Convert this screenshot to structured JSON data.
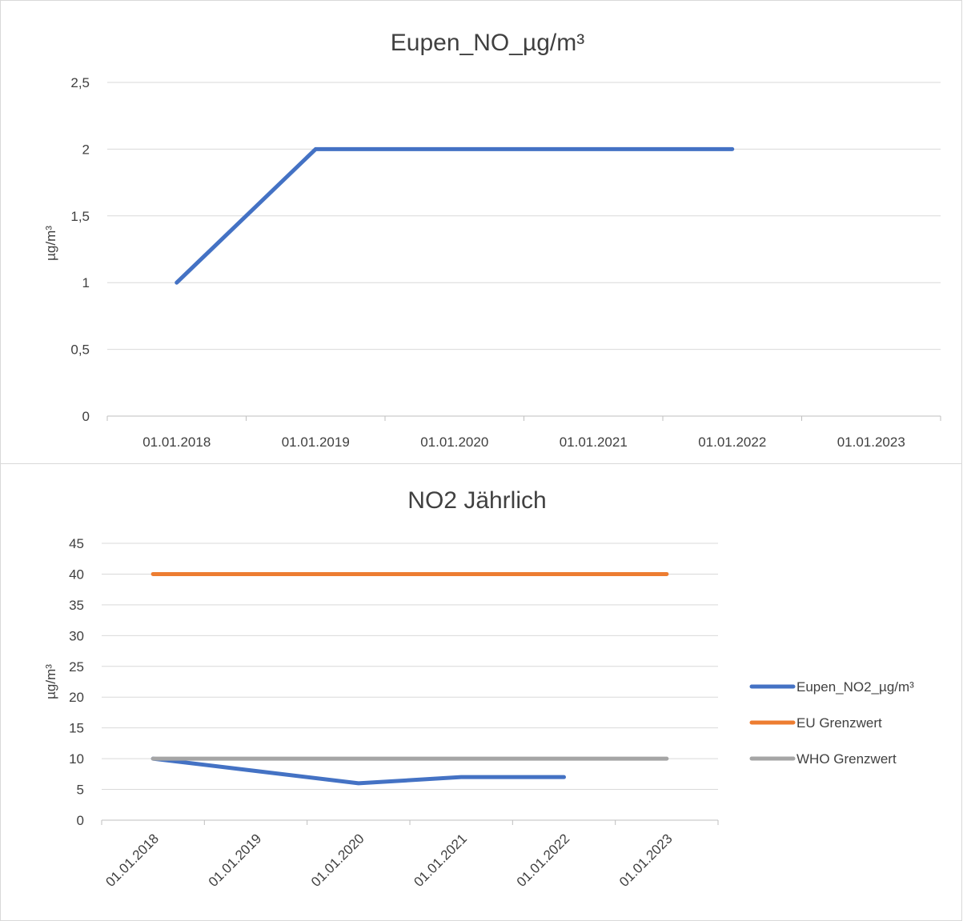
{
  "chart_data": [
    {
      "type": "line",
      "title": "Eupen_NO_µg/m³",
      "ylabel": "µg/m³",
      "xlabel": "",
      "categories": [
        "01.01.2018",
        "01.01.2019",
        "01.01.2020",
        "01.01.2021",
        "01.01.2022",
        "01.01.2023"
      ],
      "yticks": [
        "0",
        "0,5",
        "1",
        "1,5",
        "2",
        "2,5"
      ],
      "ylim": [
        0,
        2.5
      ],
      "grid": true,
      "legend": "none",
      "series": [
        {
          "values": [
            1,
            2,
            2,
            2,
            2,
            null
          ],
          "color": "#4472C4"
        }
      ]
    },
    {
      "type": "line",
      "title": "NO2 Jährlich",
      "ylabel": "µg/m³",
      "xlabel": "",
      "categories": [
        "01.01.2018",
        "01.01.2019",
        "01.01.2020",
        "01.01.2021",
        "01.01.2022",
        "01.01.2023"
      ],
      "yticks": [
        "0",
        "5",
        "10",
        "15",
        "20",
        "25",
        "30",
        "35",
        "40",
        "45"
      ],
      "ylim": [
        0,
        45
      ],
      "grid": true,
      "legend": "right",
      "series": [
        {
          "name": "Eupen_NO2_µg/m³",
          "values": [
            10,
            8,
            6,
            7,
            7,
            null
          ],
          "color": "#4472C4"
        },
        {
          "name": "EU Grenzwert",
          "values": [
            40,
            40,
            40,
            40,
            40,
            40
          ],
          "color": "#ED7D31"
        },
        {
          "name": "WHO Grenzwert",
          "values": [
            10,
            10,
            10,
            10,
            10,
            10
          ],
          "color": "#A5A5A5"
        }
      ]
    }
  ]
}
